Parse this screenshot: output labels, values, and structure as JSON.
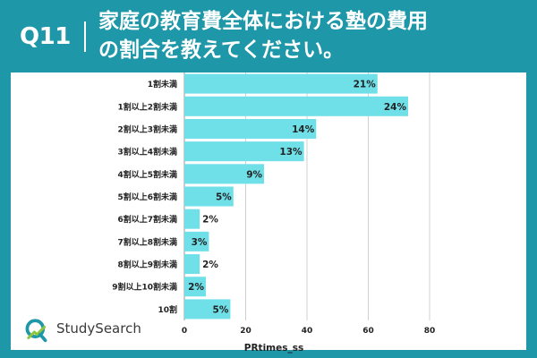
{
  "header": {
    "question_number": "Q11",
    "title_line1": "家庭の教育費全体における塾の費用",
    "title_line2": "の割合を教えてください。"
  },
  "brand": {
    "name": "StudySearch"
  },
  "colors": {
    "background": "#1e97a8",
    "bar": "#6fdfe8",
    "grid": "#d0d0d0"
  },
  "chart_data": {
    "type": "bar",
    "orientation": "horizontal",
    "categories": [
      "1割未満",
      "1割以上2割未満",
      "2割以上3割未満",
      "3割以上4割未満",
      "4割以上5割未満",
      "5割以上6割未満",
      "6割以上7割未満",
      "7割以上8割未満",
      "8割以上9割未満",
      "9割以上10割未満",
      "10割"
    ],
    "values": [
      63,
      73,
      43,
      39,
      26,
      16,
      5,
      8,
      5,
      7,
      15
    ],
    "value_labels": [
      "21%",
      "24%",
      "14%",
      "13%",
      "9%",
      "5%",
      "2%",
      "3%",
      "2%",
      "2%",
      "5%"
    ],
    "xlim": [
      0,
      80
    ],
    "xticks": [
      0,
      20,
      40,
      60,
      80
    ],
    "xlabel": "PRtimes_ss",
    "ylabel": "",
    "grid": true
  }
}
